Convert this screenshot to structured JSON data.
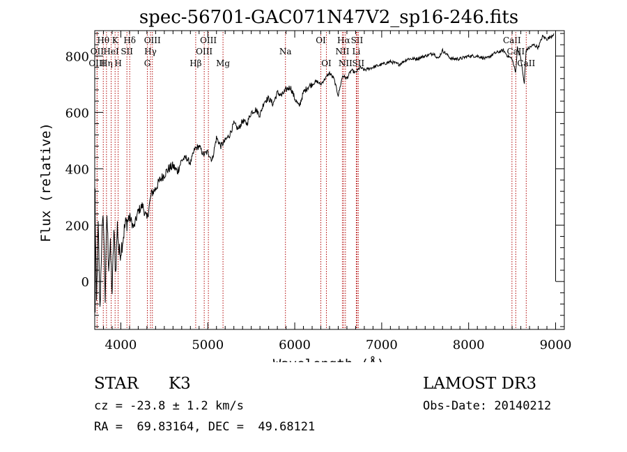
{
  "chart_data": {
    "type": "line",
    "title": "spec-56701-GAC071N47V2_sp16-246.fits",
    "xlabel": "Wavelength (Å)",
    "ylabel": "Flux (relative)",
    "xlim": [
      3700,
      9100
    ],
    "ylim": [
      -170,
      890
    ],
    "xticks": [
      4000,
      5000,
      6000,
      7000,
      8000,
      9000
    ],
    "xtick_labels": [
      "4000",
      "5000",
      "6000",
      "7000",
      "8000",
      "9000"
    ],
    "yticks": [
      0,
      200,
      400,
      600,
      800
    ],
    "ytick_labels": [
      "0",
      "200",
      "400",
      "600",
      "800"
    ],
    "grid": false,
    "series": [
      {
        "name": "flux",
        "color": "#000000",
        "x": [
          3700,
          3720,
          3740,
          3760,
          3780,
          3800,
          3820,
          3840,
          3860,
          3880,
          3900,
          3920,
          3940,
          3960,
          3980,
          4000,
          4050,
          4100,
          4150,
          4200,
          4250,
          4300,
          4350,
          4400,
          4450,
          4500,
          4550,
          4600,
          4650,
          4700,
          4750,
          4800,
          4850,
          4900,
          4950,
          5000,
          5050,
          5100,
          5150,
          5200,
          5250,
          5300,
          5350,
          5400,
          5450,
          5500,
          5550,
          5600,
          5650,
          5700,
          5750,
          5800,
          5850,
          5900,
          5950,
          6000,
          6050,
          6100,
          6150,
          6200,
          6250,
          6300,
          6350,
          6400,
          6450,
          6500,
          6550,
          6600,
          6650,
          6700,
          6750,
          6800,
          6900,
          7000,
          7100,
          7200,
          7300,
          7400,
          7500,
          7600,
          7650,
          7700,
          7800,
          7900,
          8000,
          8100,
          8200,
          8300,
          8400,
          8450,
          8500,
          8540,
          8560,
          8600,
          8640,
          8660,
          8700,
          8750,
          8800,
          8850,
          8900,
          8950,
          8980
        ],
        "y": [
          330,
          -80,
          200,
          -110,
          150,
          230,
          -60,
          240,
          60,
          120,
          -40,
          180,
          30,
          200,
          100,
          110,
          200,
          230,
          190,
          250,
          270,
          220,
          310,
          330,
          360,
          380,
          400,
          410,
          390,
          430,
          440,
          420,
          470,
          480,
          450,
          460,
          430,
          510,
          480,
          500,
          520,
          560,
          540,
          570,
          560,
          600,
          610,
          590,
          640,
          650,
          630,
          670,
          660,
          680,
          690,
          650,
          620,
          670,
          690,
          700,
          710,
          700,
          720,
          740,
          720,
          660,
          730,
          720,
          750,
          740,
          760,
          750,
          760,
          770,
          780,
          770,
          790,
          790,
          800,
          810,
          790,
          820,
          790,
          790,
          800,
          800,
          790,
          810,
          820,
          800,
          790,
          740,
          830,
          790,
          700,
          820,
          830,
          840,
          830,
          870,
          860,
          870,
          880
        ]
      }
    ],
    "line_markers": [
      {
        "label": "Hθ",
        "x": 3798,
        "row": 1
      },
      {
        "label": "OII",
        "x": 3727,
        "row": 2
      },
      {
        "label": "OIII",
        "x": 3727,
        "row": 3
      },
      {
        "label": "Hη",
        "x": 3835,
        "row": 3
      },
      {
        "label": "HeI",
        "x": 3889,
        "row": 2
      },
      {
        "label": "K",
        "x": 3934,
        "row": 1
      },
      {
        "label": "H",
        "x": 3969,
        "row": 3
      },
      {
        "label": "SII",
        "x": 4070,
        "row": 2
      },
      {
        "label": "Hδ",
        "x": 4102,
        "row": 1
      },
      {
        "label": "OIII",
        "x": 4363,
        "row": 1
      },
      {
        "label": "Hγ",
        "x": 4341,
        "row": 2
      },
      {
        "label": "G",
        "x": 4305,
        "row": 3
      },
      {
        "label": "Hβ",
        "x": 4861,
        "row": 3
      },
      {
        "label": "OIII",
        "x": 5007,
        "row": 1
      },
      {
        "label": "OIII",
        "x": 4959,
        "row": 2
      },
      {
        "label": "Mg",
        "x": 5175,
        "row": 3
      },
      {
        "label": "Na",
        "x": 5893,
        "row": 2
      },
      {
        "label": "OI",
        "x": 6300,
        "row": 1
      },
      {
        "label": "OI",
        "x": 6364,
        "row": 3
      },
      {
        "label": "Hα",
        "x": 6563,
        "row": 1
      },
      {
        "label": "NII",
        "x": 6548,
        "row": 2
      },
      {
        "label": "NII",
        "x": 6583,
        "row": 3
      },
      {
        "label": "SII",
        "x": 6716,
        "row": 1
      },
      {
        "label": "Li",
        "x": 6708,
        "row": 2
      },
      {
        "label": "SII",
        "x": 6731,
        "row": 3
      },
      {
        "label": "CaII",
        "x": 8498,
        "row": 1
      },
      {
        "label": "CaII",
        "x": 8542,
        "row": 2
      },
      {
        "label": "CaII",
        "x": 8662,
        "row": 3
      }
    ]
  },
  "info": {
    "object_class": "STAR",
    "subclass": "K3",
    "survey": "LAMOST DR3",
    "redshift": "cz = -23.8 ± 1.2 km/s",
    "obs_date": "Obs-Date: 20140212",
    "coords": "RA =  69.83164, DEC =  49.68121"
  },
  "colors": {
    "spectrum": "#000000",
    "marker_line": "#b00000",
    "axis": "#000000"
  }
}
